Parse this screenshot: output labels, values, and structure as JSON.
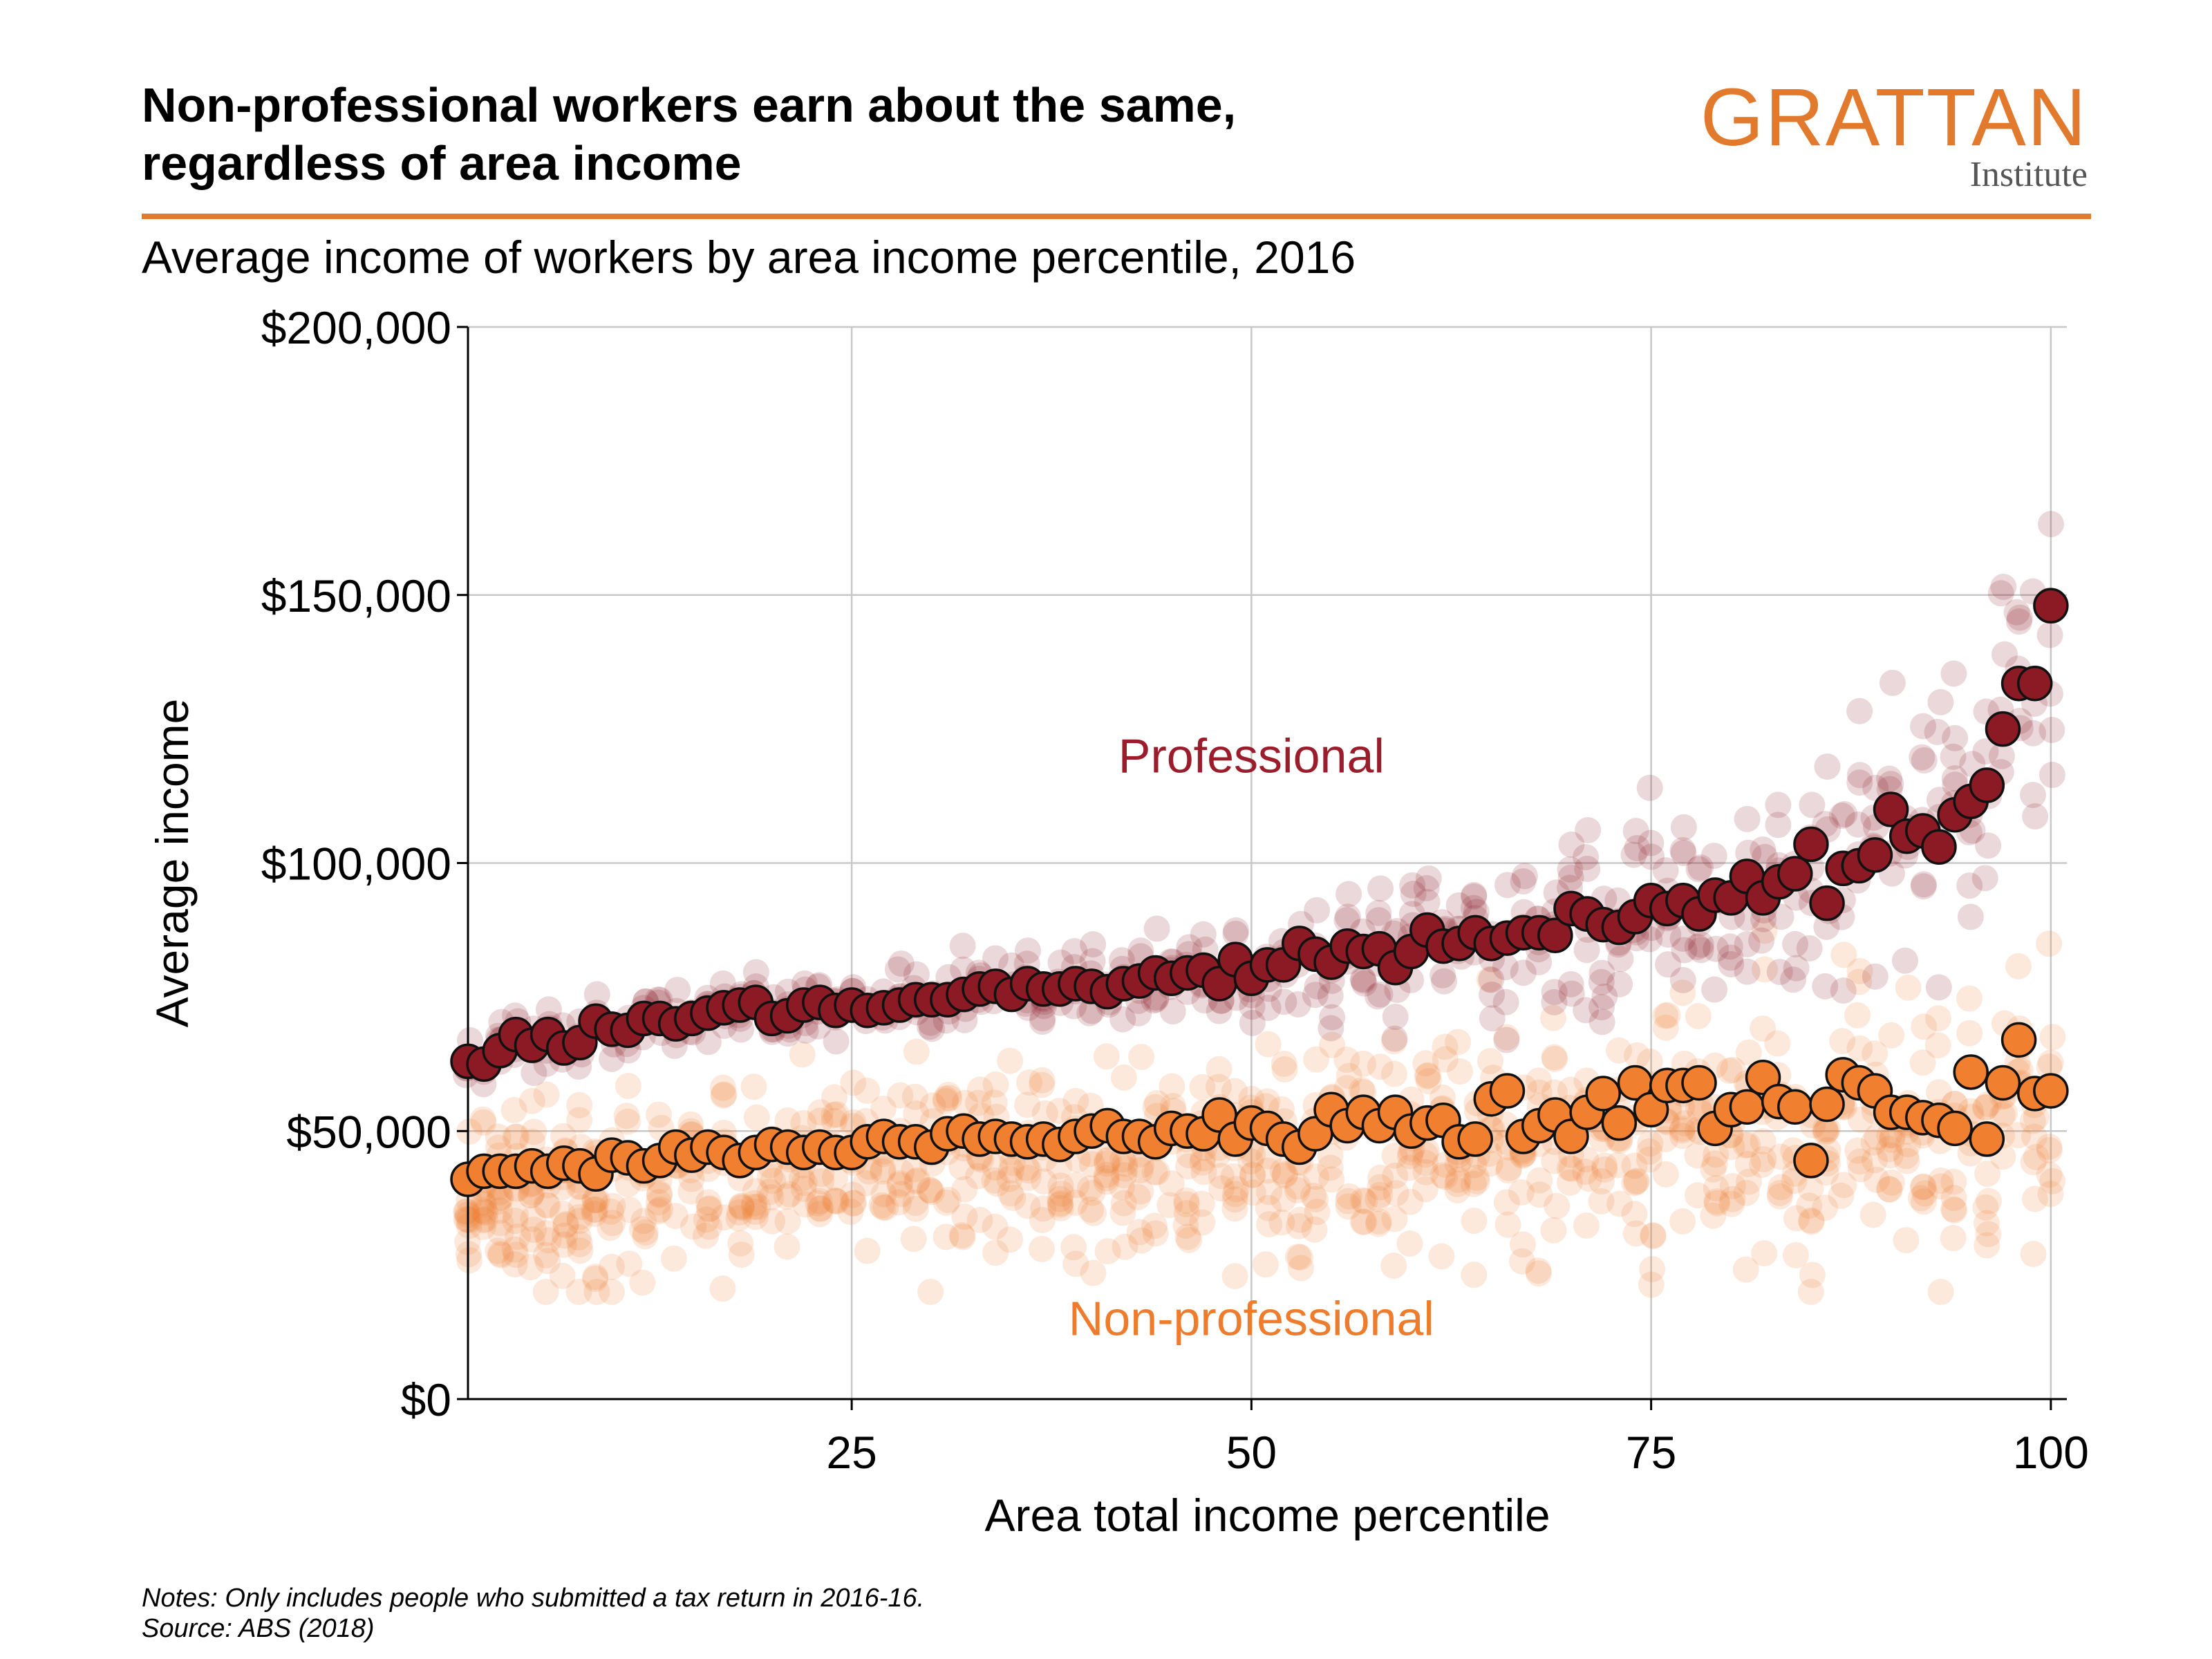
{
  "header": {
    "title_lines": [
      "Non-professional workers earn about the same,",
      "regardless of area income"
    ],
    "logo_word": "GRATTAN",
    "logo_sub": "Institute",
    "subtitle": "Average income of workers by area income percentile, 2016"
  },
  "footer": {
    "notes": "Notes: Only includes people who submitted a tax return in 2016-16.",
    "source": "Source: ABS (2018)"
  },
  "colors": {
    "accent": "#e27a2e",
    "professional": "#8b1a24",
    "professional_label": "#9b1c2a",
    "non_professional": "#f07f2f",
    "non_professional_label": "#ee7c2c",
    "grid": "#c8c8c8"
  },
  "chart_data": {
    "type": "scatter",
    "title": "Average income of workers by area income percentile, 2016",
    "xlabel": "Area total income percentile",
    "ylabel": "Average income",
    "xlim": [
      1,
      101
    ],
    "ylim": [
      0,
      200000
    ],
    "x_ticks": [
      {
        "value": 25,
        "label": "25"
      },
      {
        "value": 50,
        "label": "50"
      },
      {
        "value": 75,
        "label": "75"
      },
      {
        "value": 100,
        "label": "100"
      }
    ],
    "y_ticks": [
      {
        "value": 0,
        "label": "$0"
      },
      {
        "value": 50000,
        "label": "$50,000"
      },
      {
        "value": 100000,
        "label": "$100,000"
      },
      {
        "value": 150000,
        "label": "$150,000"
      },
      {
        "value": 200000,
        "label": "$200,000"
      }
    ],
    "grid": true,
    "annotations": [
      {
        "text": "Professional",
        "x": 50,
        "y": 120000,
        "series": "Professional"
      },
      {
        "text": "Non-professional",
        "x": 50,
        "y": 15000,
        "series": "Non-professional"
      }
    ],
    "background_points_note": "translucent points show individual areas; solid points show the average per percentile",
    "series": [
      {
        "name": "Professional",
        "x": [
          1,
          2,
          3,
          4,
          5,
          6,
          7,
          8,
          9,
          10,
          11,
          12,
          13,
          14,
          15,
          16,
          17,
          18,
          19,
          20,
          21,
          22,
          23,
          24,
          25,
          26,
          27,
          28,
          29,
          30,
          31,
          32,
          33,
          34,
          35,
          36,
          37,
          38,
          39,
          40,
          41,
          42,
          43,
          44,
          45,
          46,
          47,
          48,
          49,
          50,
          51,
          52,
          53,
          54,
          55,
          56,
          57,
          58,
          59,
          60,
          61,
          62,
          63,
          64,
          65,
          66,
          67,
          68,
          69,
          70,
          71,
          72,
          73,
          74,
          75,
          76,
          77,
          78,
          79,
          80,
          81,
          82,
          83,
          84,
          85,
          86,
          87,
          88,
          89,
          90,
          91,
          92,
          93,
          94,
          95,
          96,
          97,
          98,
          99,
          100
        ],
        "values": [
          63000,
          62500,
          65000,
          68000,
          66000,
          68000,
          65500,
          66500,
          70500,
          69000,
          68800,
          71000,
          71000,
          70000,
          71000,
          72000,
          73000,
          73500,
          74000,
          71000,
          71500,
          73500,
          74000,
          72500,
          73500,
          72500,
          73000,
          73500,
          74500,
          74500,
          74500,
          75500,
          76500,
          77000,
          75500,
          77500,
          76500,
          76500,
          77500,
          77000,
          76000,
          77500,
          78000,
          79500,
          78500,
          79500,
          80000,
          77500,
          82000,
          78500,
          81000,
          81000,
          85000,
          83000,
          81500,
          84500,
          83500,
          84000,
          80500,
          83500,
          87500,
          84500,
          85000,
          87000,
          85000,
          86000,
          87000,
          87000,
          86500,
          91500,
          90500,
          88500,
          88000,
          90000,
          93000,
          91500,
          93000,
          90500,
          94000,
          93500,
          97500,
          93500,
          96500,
          98000,
          103500,
          92500,
          99000,
          99500,
          101500,
          110000,
          105000,
          106000,
          103000,
          109000,
          111500,
          114500,
          125000,
          133500,
          133500,
          148000
        ]
      },
      {
        "name": "Non-professional",
        "x": [
          1,
          2,
          3,
          4,
          5,
          6,
          7,
          8,
          9,
          10,
          11,
          12,
          13,
          14,
          15,
          16,
          17,
          18,
          19,
          20,
          21,
          22,
          23,
          24,
          25,
          26,
          27,
          28,
          29,
          30,
          31,
          32,
          33,
          34,
          35,
          36,
          37,
          38,
          39,
          40,
          41,
          42,
          43,
          44,
          45,
          46,
          47,
          48,
          49,
          50,
          51,
          52,
          53,
          54,
          55,
          56,
          57,
          58,
          59,
          60,
          61,
          62,
          63,
          64,
          65,
          66,
          67,
          68,
          69,
          70,
          71,
          72,
          73,
          74,
          75,
          76,
          77,
          78,
          79,
          80,
          81,
          82,
          83,
          84,
          85,
          86,
          87,
          88,
          89,
          90,
          91,
          92,
          93,
          94,
          95,
          96,
          97,
          98,
          99,
          100
        ],
        "values": [
          41000,
          42500,
          42500,
          42500,
          43500,
          42500,
          44000,
          43500,
          42000,
          45500,
          45000,
          43500,
          44500,
          47000,
          45500,
          47000,
          46000,
          44500,
          46000,
          47500,
          47000,
          46000,
          47000,
          46000,
          46000,
          48000,
          49000,
          48000,
          48000,
          47000,
          49500,
          50000,
          48500,
          49000,
          48500,
          48000,
          48500,
          47500,
          49000,
          50000,
          51000,
          49000,
          49000,
          48000,
          50500,
          50000,
          49500,
          53000,
          48500,
          51500,
          50500,
          48500,
          47000,
          49500,
          54000,
          51000,
          53500,
          51000,
          53500,
          50000,
          51500,
          52000,
          48000,
          48500,
          56000,
          57500,
          49000,
          51000,
          53000,
          49000,
          53500,
          57000,
          51500,
          59000,
          54000,
          58500,
          58500,
          59000,
          50500,
          54000,
          54500,
          60000,
          55500,
          54500,
          44500,
          55000,
          60500,
          59000,
          57500,
          53500,
          53500,
          52500,
          52000,
          50500,
          61000,
          48500,
          59000,
          67000,
          57000,
          57500
        ]
      }
    ]
  }
}
